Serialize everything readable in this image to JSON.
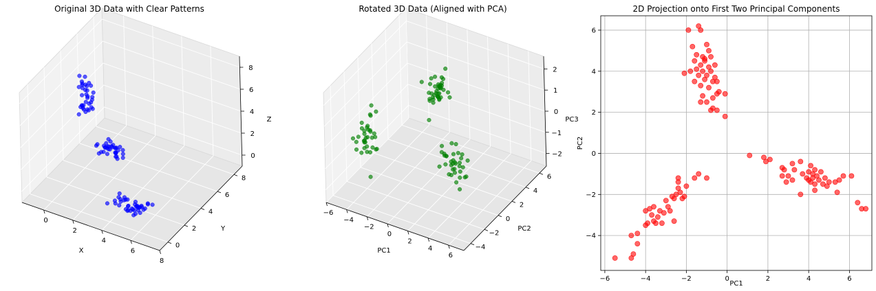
{
  "chart_data": [
    {
      "type": "scatter3d",
      "title": "Original 3D Data with Clear Patterns",
      "xlabel": "X",
      "ylabel": "Y",
      "zlabel": "Z",
      "xlim": [
        -1.5,
        8
      ],
      "ylim": [
        -1,
        9
      ],
      "zlim": [
        -1,
        9
      ],
      "xticks": [
        "0",
        "2",
        "4",
        "6",
        "8"
      ],
      "yticks": [
        "0",
        "2",
        "4",
        "6",
        "8"
      ],
      "zticks": [
        "0",
        "2",
        "4",
        "6",
        "8"
      ],
      "color": "#0000ff",
      "clusters": [
        {
          "center": [
            -0.5,
            5.2,
            4.5
          ],
          "spread": [
            0.4,
            0.5,
            1.6
          ],
          "n": 35
        },
        {
          "center": [
            1.6,
            4.2,
            1.2
          ],
          "spread": [
            0.9,
            0.5,
            0.4
          ],
          "n": 35
        },
        {
          "center": [
            5.0,
            1.0,
            0.2
          ],
          "spread": [
            1.2,
            0.6,
            0.3
          ],
          "n": 40
        }
      ]
    },
    {
      "type": "scatter3d",
      "title": "Rotated 3D Data (Aligned with PCA)",
      "xlabel": "PC1",
      "ylabel": "PC2",
      "zlabel": "PC3",
      "xlim": [
        -6,
        7.5
      ],
      "ylim": [
        -5,
        7
      ],
      "zlim": [
        -2.6,
        2.6
      ],
      "xticks": [
        "−6",
        "−4",
        "−2",
        "0",
        "2",
        "4",
        "6"
      ],
      "yticks": [
        "−4",
        "−2",
        "0",
        "2",
        "4",
        "6"
      ],
      "zticks": [
        "−2",
        "−1",
        "0",
        "1",
        "2"
      ],
      "color": "#008000",
      "clusters": [
        {
          "center": [
            -3.5,
            -2.5,
            0.0
          ],
          "spread": [
            0.9,
            0.9,
            0.9
          ],
          "n": 35
        },
        {
          "center": [
            -1.0,
            4.0,
            0.5
          ],
          "spread": [
            0.5,
            0.8,
            0.6
          ],
          "n": 40
        },
        {
          "center": [
            4.0,
            -1.0,
            -0.5
          ],
          "spread": [
            1.0,
            0.5,
            0.7
          ],
          "n": 35
        }
      ]
    },
    {
      "type": "scatter",
      "title": "2D Projection onto First Two Principal Components",
      "xlabel": "PC1",
      "ylabel": "PC2",
      "xlim": [
        -6.2,
        7.1
      ],
      "ylim": [
        -5.7,
        6.7
      ],
      "xticks": [
        -6,
        -4,
        -2,
        0,
        2,
        4,
        6
      ],
      "yticks": [
        -4,
        -2,
        0,
        2,
        4,
        6
      ],
      "grid": true,
      "color": "#ff0000",
      "points": [
        [
          -1.9,
          6.0
        ],
        [
          -1.4,
          6.2
        ],
        [
          -1.3,
          6.0
        ],
        [
          -1.7,
          5.2
        ],
        [
          -1.0,
          5.3
        ],
        [
          -0.9,
          5.0
        ],
        [
          -1.5,
          4.8
        ],
        [
          -1.2,
          4.7
        ],
        [
          -0.8,
          4.7
        ],
        [
          -1.1,
          4.5
        ],
        [
          -1.6,
          4.5
        ],
        [
          -1.3,
          4.3
        ],
        [
          -0.9,
          4.2
        ],
        [
          -1.5,
          4.1
        ],
        [
          -1.2,
          4.0
        ],
        [
          -1.8,
          4.0
        ],
        [
          -0.8,
          4.0
        ],
        [
          -1.0,
          3.8
        ],
        [
          -1.4,
          3.8
        ],
        [
          -0.6,
          3.7
        ],
        [
          -1.1,
          3.6
        ],
        [
          -0.7,
          3.5
        ],
        [
          -1.6,
          3.5
        ],
        [
          -0.5,
          3.5
        ],
        [
          -1.3,
          3.3
        ],
        [
          -2.1,
          3.9
        ],
        [
          -0.9,
          3.2
        ],
        [
          -0.4,
          3.0
        ],
        [
          -0.5,
          2.9
        ],
        [
          -1.2,
          2.8
        ],
        [
          -0.7,
          2.7
        ],
        [
          -1.3,
          2.5
        ],
        [
          -1.0,
          2.5
        ],
        [
          -0.1,
          2.9
        ],
        [
          -0.7,
          2.2
        ],
        [
          -0.5,
          2.1
        ],
        [
          -0.8,
          2.1
        ],
        [
          -0.1,
          1.8
        ],
        [
          -1.1,
          4.6
        ],
        [
          -0.6,
          4.3
        ],
        [
          -4.7,
          -5.1
        ],
        [
          -5.5,
          -5.1
        ],
        [
          -4.6,
          -4.9
        ],
        [
          -4.4,
          -4.4
        ],
        [
          -4.7,
          -4.0
        ],
        [
          -4.4,
          -3.9
        ],
        [
          -3.9,
          -3.4
        ],
        [
          -4.0,
          -3.5
        ],
        [
          -3.6,
          -3.3
        ],
        [
          -3.2,
          -3.4
        ],
        [
          -3.4,
          -3.1
        ],
        [
          -3.7,
          -3.0
        ],
        [
          -3.1,
          -2.9
        ],
        [
          -2.6,
          -3.3
        ],
        [
          -3.3,
          -2.8
        ],
        [
          -2.8,
          -2.8
        ],
        [
          -3.6,
          -2.6
        ],
        [
          -3.8,
          -2.7
        ],
        [
          -2.9,
          -2.6
        ],
        [
          -3.0,
          -2.3
        ],
        [
          -2.7,
          -2.1
        ],
        [
          -2.5,
          -2.0
        ],
        [
          -2.2,
          -2.2
        ],
        [
          -2.3,
          -1.9
        ],
        [
          -2.4,
          -1.7
        ],
        [
          -2.0,
          -1.6
        ],
        [
          -2.4,
          -1.4
        ],
        [
          -1.6,
          -1.2
        ],
        [
          -2.4,
          -1.2
        ],
        [
          -1.4,
          -1.0
        ],
        [
          -1.0,
          -1.2
        ],
        [
          -2.6,
          -2.2
        ],
        [
          -3.5,
          -3.4
        ],
        [
          -4.0,
          -2.8
        ],
        [
          -2.1,
          -2.1
        ],
        [
          1.1,
          -0.1
        ],
        [
          1.8,
          -0.2
        ],
        [
          2.1,
          -0.3
        ],
        [
          1.9,
          -0.4
        ],
        [
          2.7,
          -0.7
        ],
        [
          2.8,
          -0.8
        ],
        [
          3.2,
          -0.5
        ],
        [
          3.6,
          -0.4
        ],
        [
          3.3,
          -0.8
        ],
        [
          4.1,
          -0.6
        ],
        [
          4.0,
          -0.9
        ],
        [
          4.2,
          -1.0
        ],
        [
          4.3,
          -0.8
        ],
        [
          4.4,
          -1.1
        ],
        [
          4.6,
          -0.9
        ],
        [
          3.9,
          -1.2
        ],
        [
          4.5,
          -1.3
        ],
        [
          4.1,
          -1.4
        ],
        [
          4.3,
          -1.5
        ],
        [
          4.8,
          -1.2
        ],
        [
          5.0,
          -1.4
        ],
        [
          5.3,
          -1.4
        ],
        [
          5.5,
          -1.3
        ],
        [
          5.7,
          -1.1
        ],
        [
          6.1,
          -1.1
        ],
        [
          4.7,
          -1.5
        ],
        [
          4.3,
          -1.8
        ],
        [
          4.9,
          -1.6
        ],
        [
          5.4,
          -1.9
        ],
        [
          3.6,
          -2.0
        ],
        [
          3.0,
          -1.1
        ],
        [
          2.7,
          -1.1
        ],
        [
          3.2,
          -1.3
        ],
        [
          2.9,
          -1.4
        ],
        [
          6.4,
          -2.4
        ],
        [
          6.6,
          -2.7
        ],
        [
          6.8,
          -2.7
        ],
        [
          4.0,
          -1.3
        ],
        [
          3.7,
          -1.0
        ],
        [
          4.2,
          -1.2
        ]
      ]
    }
  ]
}
